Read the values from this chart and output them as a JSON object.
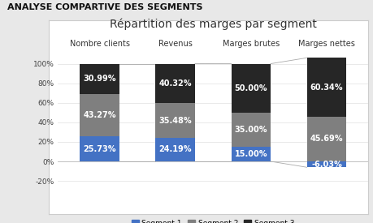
{
  "title": "Répartition des marges par segment",
  "suptitle": "ANALYSE COMPARTIVE DES SEGMENTS",
  "categories": [
    "Nombre clients",
    "Revenus",
    "Marges brutes",
    "Marges nettes"
  ],
  "segments": {
    "Segment 1": [
      25.73,
      24.19,
      15.0,
      -6.03
    ],
    "Segment 2": [
      43.27,
      35.48,
      35.0,
      45.69
    ],
    "Segment 3": [
      30.99,
      40.32,
      50.0,
      60.34
    ]
  },
  "colors": {
    "Segment 1": "#4472C4",
    "Segment 2": "#7f7f7f",
    "Segment 3": "#262626"
  },
  "ylim": [
    -22,
    115
  ],
  "yticks": [
    -20,
    0,
    20,
    40,
    60,
    80,
    100
  ],
  "ytick_labels": [
    "-20%",
    "0%",
    "20%",
    "40%",
    "60%",
    "80%",
    "100%"
  ],
  "bar_width": 0.52,
  "background_color": "#ffffff",
  "outer_bg": "#e8e8e8",
  "label_fontsize": 7,
  "title_fontsize": 10,
  "suptitle_fontsize": 8,
  "cat_label_fontsize": 7
}
